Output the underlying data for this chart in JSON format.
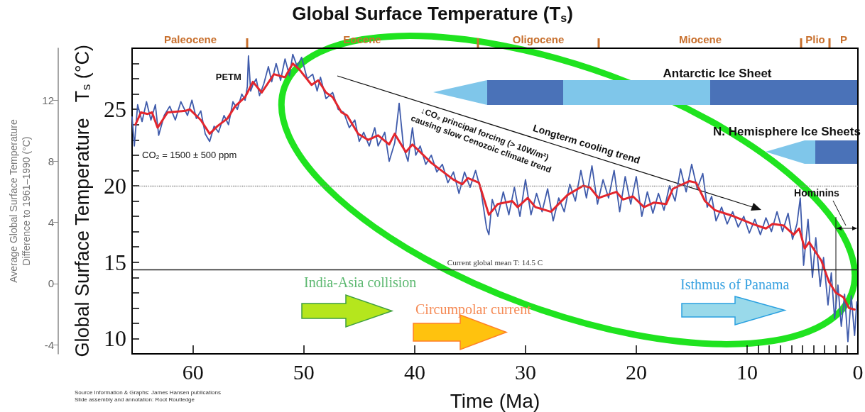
{
  "chart_data": {
    "type": "line",
    "title": "Global Surface Temperature (T$_{s}$)",
    "xlabel": "Time (Ma)",
    "ylabel": "Global Surface Temperature   T$_{s}$ (°C)",
    "y2label": "Average Global Surface Temperature\nDifference to 1961–1990 (°C)",
    "xlim": [
      65.5,
      0
    ],
    "xticks": [
      60,
      50,
      40,
      30,
      20,
      10,
      0,
      {
        "value": 9,
        "label": null
      },
      {
        "value": 8,
        "label": null
      },
      {
        "value": 7,
        "label": null
      },
      {
        "value": 6,
        "label": null
      },
      {
        "value": 5,
        "label": null
      },
      {
        "value": 4,
        "label": null
      },
      {
        "value": 3,
        "label": null
      },
      {
        "value": 2,
        "label": null
      },
      {
        "value": 1,
        "label": null
      }
    ],
    "ylim": [
      9,
      29
    ],
    "yticks": [
      {
        "value": 9,
        "label": null
      },
      10,
      {
        "value": 11,
        "label": null
      },
      {
        "value": 12,
        "label": null
      },
      {
        "value": 13,
        "label": null
      },
      {
        "value": 14,
        "label": null
      },
      15,
      {
        "value": 16,
        "label": null
      },
      {
        "value": 17,
        "label": null
      },
      {
        "value": 18,
        "label": null
      },
      {
        "value": 19,
        "label": null
      },
      20,
      {
        "value": 21,
        "label": null
      },
      {
        "value": 22,
        "label": null
      },
      {
        "value": 23,
        "label": null
      },
      {
        "value": 24,
        "label": null
      },
      25,
      {
        "value": 26,
        "label": null
      },
      {
        "value": 27,
        "label": null
      },
      {
        "value": 28,
        "label": null
      }
    ],
    "y2lim": [
      -4.6,
      15.4
    ],
    "y2ticks": [
      -4,
      0,
      4,
      8,
      12
    ],
    "marker": "none",
    "line_style": "solid",
    "series": [
      {
        "color": "#3f5bab",
        "x": [
          65.5,
          65.3,
          65.0,
          64.6,
          64.2,
          63.8,
          63.4,
          63.1,
          62.6,
          62.1,
          61.6,
          61.1,
          60.5,
          60.1,
          59.7,
          59.3,
          58.9,
          58.5,
          58.1,
          57.7,
          57.2,
          56.8,
          56.4,
          56.0,
          55.6,
          55.3,
          55.1,
          55.0,
          54.8,
          54.6,
          54.3,
          54.0,
          53.6,
          53.2,
          52.9,
          52.5,
          52.1,
          51.7,
          51.3,
          51.0,
          50.6,
          50.2,
          49.7,
          49.2,
          48.8,
          48.5,
          48.0,
          47.4,
          46.9,
          46.4,
          45.9,
          45.4,
          45.0,
          44.6,
          44.1,
          43.6,
          43.3,
          42.7,
          42.3,
          41.8,
          41.4,
          41.0,
          40.6,
          40.2,
          39.9,
          39.5,
          39.0,
          38.5,
          38.0,
          37.5,
          37.0,
          36.5,
          36.0,
          35.5,
          35.0,
          34.5,
          34.0,
          33.5,
          33.3,
          33.0,
          32.5,
          32.0,
          31.5,
          31.0,
          30.5,
          30.0,
          29.5,
          29.0,
          28.5,
          28.0,
          27.5,
          27.0,
          26.5,
          26.0,
          25.5,
          25.0,
          24.5,
          24.0,
          23.5,
          23.0,
          22.5,
          22.0,
          21.5,
          21.0,
          20.5,
          20.0,
          19.5,
          19.0,
          18.5,
          18.0,
          17.5,
          17.0,
          16.5,
          16.0,
          15.5,
          15.0,
          14.5,
          14.0,
          13.6,
          13.2,
          12.8,
          12.3,
          11.8,
          11.3,
          10.8,
          10.3,
          9.8,
          9.3,
          8.8,
          8.3,
          7.8,
          7.3,
          6.8,
          6.3,
          5.9,
          5.5,
          5.2,
          4.9,
          4.5,
          4.1,
          3.8,
          3.4,
          3.1,
          2.7,
          2.4,
          2.1,
          1.8,
          1.5,
          1.2,
          0.9,
          0.6,
          0.3,
          0.1
        ],
        "values": [
          24.5,
          22.6,
          25.3,
          24.2,
          25.5,
          24.3,
          25.3,
          23.3,
          24.6,
          25.2,
          24.3,
          25.5,
          24.6,
          25.6,
          24.4,
          24.9,
          23.4,
          22.9,
          23.9,
          23.5,
          24.6,
          24.0,
          25.5,
          25.0,
          26.0,
          25.6,
          26.5,
          28.5,
          26.2,
          26.6,
          27.0,
          25.9,
          26.7,
          27.8,
          26.8,
          28.0,
          26.9,
          28.3,
          27.2,
          28.6,
          27.8,
          28.4,
          27.0,
          27.3,
          26.2,
          27.1,
          25.7,
          26.1,
          25.0,
          24.8,
          23.8,
          24.3,
          22.9,
          23.5,
          22.6,
          23.8,
          22.6,
          23.5,
          21.6,
          22.8,
          25.4,
          22.5,
          21.6,
          23.8,
          22.0,
          22.6,
          21.4,
          22.0,
          20.9,
          21.4,
          20.2,
          20.9,
          19.5,
          20.9,
          19.9,
          21.0,
          19.6,
          17.2,
          16.8,
          19.1,
          18.0,
          19.6,
          18.1,
          19.9,
          18.0,
          20.4,
          18.1,
          19.5,
          18.3,
          19.8,
          17.7,
          19.2,
          18.3,
          20.1,
          19.0,
          21.0,
          19.2,
          21.3,
          18.8,
          20.4,
          19.2,
          21.0,
          18.3,
          20.6,
          18.8,
          20.6,
          18.0,
          19.6,
          18.2,
          19.5,
          18.4,
          20.0,
          19.0,
          21.1,
          19.6,
          21.4,
          19.8,
          20.8,
          18.6,
          19.3,
          17.7,
          18.6,
          17.5,
          18.3,
          17.3,
          18.0,
          16.9,
          17.8,
          16.8,
          17.9,
          17.0,
          18.3,
          17.0,
          18.2,
          16.5,
          17.5,
          19.2,
          14.8,
          17.8,
          14.0,
          16.6,
          13.4,
          15.3,
          12.2,
          14.3,
          11.3,
          13.5,
          10.8,
          12.9,
          9.8,
          12.8,
          10.2,
          12.4
        ]
      },
      {
        "color": "#e3262d",
        "x": [
          65.2,
          64.7,
          64.1,
          63.7,
          63.2,
          62.3,
          60.7,
          60.3,
          59.3,
          58.5,
          57.8,
          56.9,
          56.2,
          55.3,
          54.6,
          53.8,
          52.7,
          51.7,
          51.0,
          50.4,
          49.3,
          48.7,
          48.0,
          47.4,
          46.6,
          46.1,
          45.1,
          44.2,
          43.3,
          42.3,
          41.8,
          40.8,
          40.2,
          38.5,
          36.5,
          35.7,
          35.2,
          34.2,
          33.3,
          32.5,
          31.2,
          30.7,
          29.8,
          29.1,
          27.7,
          26.2,
          24.8,
          24.2,
          23.4,
          21.8,
          21.2,
          20.3,
          19.3,
          18.4,
          17.3,
          16.7,
          15.2,
          14.6,
          13.8,
          12.9,
          11.2,
          9.5,
          8.3,
          7.7,
          6.7,
          5.8,
          5.3,
          4.8,
          4.4,
          3.3,
          2.6,
          2.0,
          1.3,
          0.8,
          0.3
        ],
        "values": [
          24.0,
          24.8,
          24.7,
          24.8,
          23.8,
          24.8,
          24.9,
          25.0,
          24.3,
          23.4,
          23.9,
          24.4,
          25.2,
          25.8,
          26.8,
          26.1,
          27.3,
          27.1,
          28.0,
          27.6,
          26.6,
          26.9,
          26.1,
          25.8,
          24.8,
          24.6,
          23.4,
          23.0,
          23.3,
          22.7,
          23.4,
          22.2,
          22.7,
          21.5,
          20.4,
          20.1,
          20.5,
          20.2,
          18.1,
          18.8,
          19.0,
          18.6,
          19.2,
          18.6,
          18.3,
          19.4,
          20.0,
          19.9,
          19.2,
          19.6,
          19.1,
          19.3,
          18.6,
          18.9,
          18.8,
          19.8,
          20.3,
          20.2,
          19.0,
          18.4,
          18.0,
          17.5,
          17.2,
          17.5,
          17.4,
          16.8,
          17.2,
          15.9,
          16.3,
          15.1,
          13.7,
          13.0,
          12.7,
          12.0,
          11.9
        ]
      }
    ],
    "ref_lines": [
      {
        "axis": "y",
        "value": 14.5,
        "label": "Current global mean T: 14.5 C",
        "color": "#222222",
        "line_style": "solid"
      },
      {
        "axis": "y",
        "value": 20,
        "color": "#888888",
        "line_style": "dotted"
      }
    ],
    "annotations": [
      {
        "text": "PETM",
        "x": 55.0,
        "y": 28.5
      },
      "CO₂ = 1500 ± 500 ppm",
      "Antarctic Ice Sheet",
      "N. Hemisphere Ice Sheets",
      "↓CO₂ principal forcing (> 10W/m²)\ncausing slow Cenozoic climate trend",
      "Longterm cooling trend",
      "Hominins",
      "India-Asia collision",
      "Circumpolar current",
      "Isthmus of Panama",
      "Source Information & Graphs: James Hansen publications",
      "Slide assembly and annotation: Root Routledge",
      "Paleocene",
      "Eocene",
      "Oligocene",
      "Miocene",
      "Plio",
      "P"
    ]
  }
}
